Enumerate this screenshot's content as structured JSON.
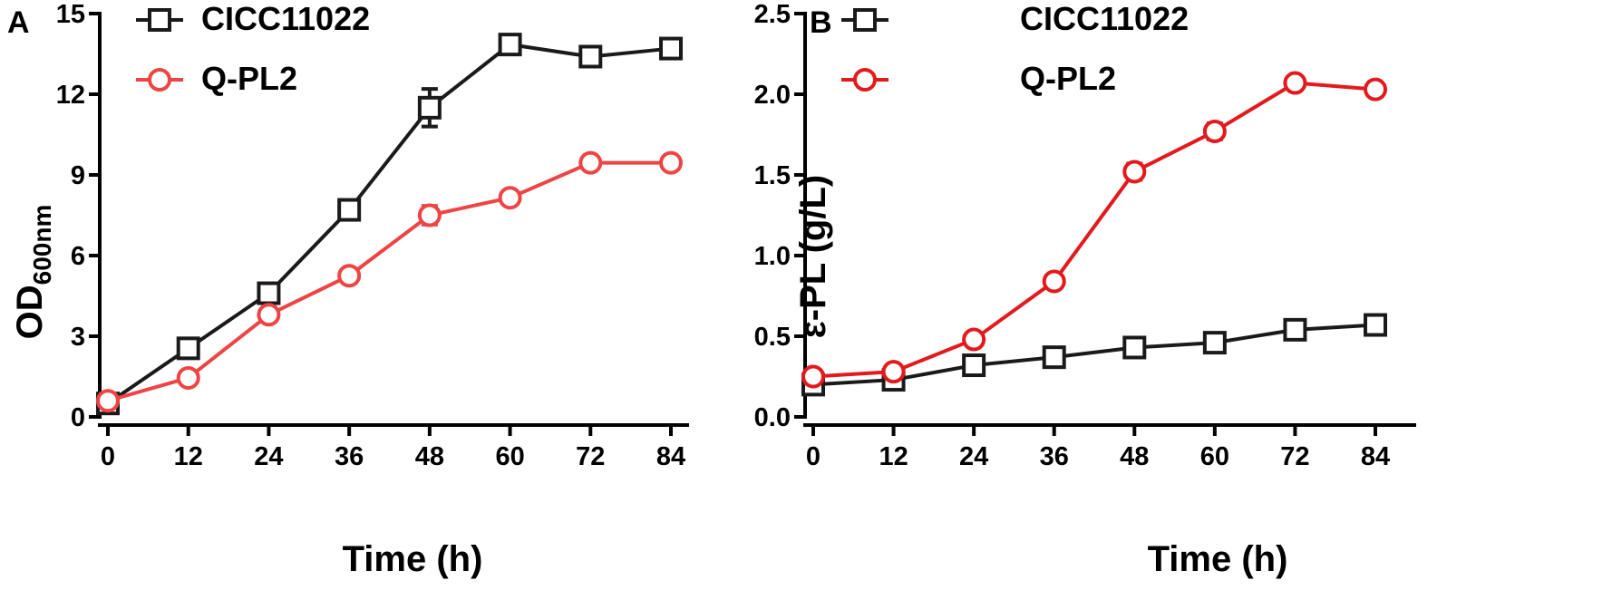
{
  "figure": {
    "panels": [
      "A",
      "B"
    ]
  },
  "chart_data": [
    {
      "panel": "A",
      "type": "line",
      "title": "",
      "xlabel": "Time (h)",
      "ylabel": "OD",
      "ylabel_subscript": "600nm",
      "x": [
        0,
        12,
        24,
        36,
        48,
        60,
        72,
        84
      ],
      "xlim": [
        0,
        84
      ],
      "ylim": [
        0,
        15
      ],
      "xticks": [
        0,
        12,
        24,
        36,
        48,
        60,
        72,
        84
      ],
      "xtick_labels": [
        "0",
        "12",
        "24",
        "36",
        "48",
        "60",
        "72",
        "84"
      ],
      "yticks": [
        0,
        3,
        6,
        9,
        12,
        15
      ],
      "ytick_labels": [
        "0",
        "3",
        "6",
        "9",
        "12",
        "15"
      ],
      "grid": false,
      "legend_position": "top-left",
      "series": [
        {
          "name": "CICC11022",
          "marker": "square",
          "color": "#1a1a1a",
          "values": [
            0.5,
            2.55,
            4.6,
            7.7,
            11.5,
            13.85,
            13.4,
            13.7
          ],
          "errors": [
            0.1,
            0.15,
            0.15,
            0.2,
            0.7,
            0.35,
            0.15,
            0.3
          ]
        },
        {
          "name": "Q-PL2",
          "marker": "circle",
          "color": "#ee4444",
          "values": [
            0.6,
            1.45,
            3.8,
            5.25,
            7.5,
            8.15,
            9.45,
            9.45
          ],
          "errors": [
            0.1,
            0.1,
            0.1,
            0.1,
            0.35,
            0.1,
            0.1,
            0.1
          ]
        }
      ]
    },
    {
      "panel": "B",
      "type": "line",
      "title": "",
      "xlabel": "Time (h)",
      "ylabel": "ε-PL (g/L)",
      "x": [
        0,
        12,
        24,
        36,
        48,
        60,
        72,
        84
      ],
      "xlim": [
        0,
        84
      ],
      "ylim": [
        0,
        2.5
      ],
      "xticks": [
        0,
        12,
        24,
        36,
        48,
        60,
        72,
        84
      ],
      "xtick_labels": [
        "0",
        "12",
        "24",
        "36",
        "48",
        "60",
        "72",
        "84"
      ],
      "yticks": [
        0,
        0.5,
        1.0,
        1.5,
        2.0,
        2.5
      ],
      "ytick_labels": [
        "0.0",
        "0.5",
        "1.0",
        "1.5",
        "2.0",
        "2.5"
      ],
      "grid": false,
      "legend_position": "top-left",
      "series": [
        {
          "name": "CICC11022",
          "marker": "square",
          "color": "#1a1a1a",
          "values": [
            0.2,
            0.23,
            0.32,
            0.37,
            0.43,
            0.46,
            0.54,
            0.57
          ],
          "errors": [
            0.03,
            0.02,
            0.06,
            0.03,
            0.02,
            0.03,
            0.04,
            0.02
          ]
        },
        {
          "name": "Q-PL2",
          "marker": "circle",
          "color": "#e31a1c",
          "values": [
            0.25,
            0.28,
            0.48,
            0.84,
            1.52,
            1.77,
            2.07,
            2.03
          ],
          "errors": [
            0.02,
            0.04,
            0.02,
            0.02,
            0.05,
            0.05,
            0.02,
            0.02
          ]
        }
      ]
    }
  ]
}
